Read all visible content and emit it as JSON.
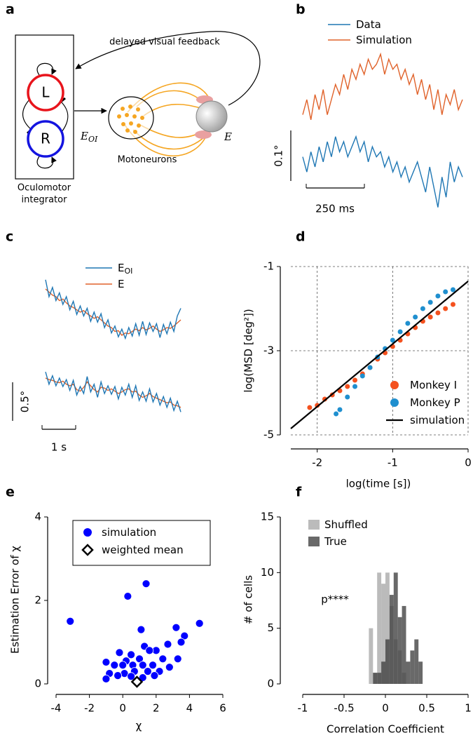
{
  "diagram": {
    "panel_label": "a",
    "feedback_label": "delayed visual feedback",
    "nodes": [
      {
        "label": "L"
      },
      {
        "label": "R"
      }
    ],
    "integrator_label": [
      "Oculomotor",
      "integrator"
    ],
    "signal_label": {
      "text": "E",
      "subscript": "OI"
    },
    "motoneuron_label": "Motoneurons",
    "eye_label": "E"
  },
  "chart_data": [
    {
      "type": "trace",
      "panel_label": "b",
      "series": [
        {
          "name": "Data",
          "color": "#1f77b4",
          "values": [
            0.02,
            -0.01,
            0.03,
            0.0,
            0.04,
            0.01,
            0.05,
            0.02,
            0.06,
            0.03,
            0.05,
            0.02,
            0.04,
            0.06,
            0.03,
            0.05,
            0.01,
            0.04,
            0.02,
            0.03,
            0.0,
            0.02,
            -0.01,
            0.01,
            -0.02,
            0.0,
            -0.03,
            -0.01,
            0.01,
            -0.02,
            -0.05,
            0.0,
            -0.04,
            -0.08,
            -0.02,
            -0.06,
            0.01,
            -0.03,
            0.0,
            -0.02
          ]
        },
        {
          "name": "Simulation",
          "color": "#e0622a",
          "values": [
            0.02,
            0.05,
            0.01,
            0.06,
            0.03,
            0.07,
            0.02,
            0.05,
            0.08,
            0.06,
            0.1,
            0.07,
            0.11,
            0.09,
            0.12,
            0.1,
            0.13,
            0.11,
            0.12,
            0.14,
            0.1,
            0.13,
            0.11,
            0.12,
            0.09,
            0.11,
            0.08,
            0.1,
            0.06,
            0.09,
            0.05,
            0.08,
            0.03,
            0.07,
            0.02,
            0.06,
            0.04,
            0.07,
            0.03,
            0.05
          ]
        }
      ],
      "scale_bars": [
        {
          "value": 0.1,
          "label": "0.1°"
        },
        {
          "value": 250,
          "label": "250 ms"
        }
      ]
    },
    {
      "type": "trace",
      "panel_label": "c",
      "series": [
        {
          "name": "E",
          "subscript": "OI",
          "color": "#1f77b4",
          "values": [
            [
              0.72,
              0.5,
              0.62,
              0.45,
              0.55,
              0.4,
              0.5,
              0.33,
              0.44,
              0.27,
              0.38,
              0.25,
              0.35,
              0.18,
              0.3,
              0.17,
              0.28,
              0.1,
              0.2,
              0.03,
              0.12,
              -0.02,
              0.08,
              -0.04,
              0.1,
              -0.01,
              0.15,
              0.0,
              0.18,
              0.01,
              0.16,
              0.05,
              0.15,
              -0.03,
              0.14,
              0.02,
              0.17,
              0.05,
              0.25,
              0.35
            ],
            [
              0.38,
              0.22,
              0.33,
              0.2,
              0.3,
              0.19,
              0.28,
              0.14,
              0.27,
              0.08,
              0.19,
              0.1,
              0.32,
              0.12,
              0.22,
              0.05,
              0.25,
              0.1,
              0.2,
              0.09,
              0.19,
              0.03,
              0.18,
              0.08,
              0.22,
              0.05,
              0.2,
              0.01,
              0.12,
              0.0,
              0.16,
              -0.01,
              0.1,
              -0.05,
              0.06,
              -0.08,
              0.04,
              -0.12,
              0.0,
              -0.14
            ]
          ]
        },
        {
          "name": "E",
          "color": "#e0622a",
          "values": [
            [
              0.6,
              0.56,
              0.52,
              0.5,
              0.45,
              0.47,
              0.42,
              0.38,
              0.36,
              0.33,
              0.3,
              0.32,
              0.28,
              0.25,
              0.22,
              0.24,
              0.2,
              0.16,
              0.12,
              0.1,
              0.05,
              0.06,
              0.0,
              0.03,
              0.02,
              0.05,
              0.08,
              0.06,
              0.1,
              0.07,
              0.09,
              0.12,
              0.08,
              0.05,
              0.07,
              0.1,
              0.09,
              0.12,
              0.16,
              0.2
            ],
            [
              0.3,
              0.28,
              0.27,
              0.25,
              0.24,
              0.26,
              0.22,
              0.2,
              0.22,
              0.15,
              0.13,
              0.18,
              0.25,
              0.2,
              0.15,
              0.12,
              0.18,
              0.17,
              0.14,
              0.16,
              0.13,
              0.1,
              0.12,
              0.15,
              0.16,
              0.12,
              0.13,
              0.08,
              0.05,
              0.07,
              0.1,
              0.06,
              0.04,
              0.02,
              0.0,
              -0.02,
              -0.01,
              -0.05,
              -0.06,
              -0.08
            ]
          ]
        }
      ],
      "scale_bars": [
        {
          "value": 0.5,
          "label": "0.5°"
        },
        {
          "value": 1,
          "label": "1 s"
        }
      ]
    },
    {
      "type": "scatter",
      "panel_label": "d",
      "xlabel": "log(time [s])",
      "ylabel": "log(MSD [deg²])",
      "xlim": [
        -2.35,
        0
      ],
      "ylim": [
        -5,
        -1
      ],
      "xticks": [
        -2,
        -1,
        0
      ],
      "yticks": [
        -1,
        -3,
        -5
      ],
      "grid": true,
      "legend": "lower right",
      "series": [
        {
          "name": "Monkey I",
          "color": "#f4511e",
          "x": [
            -2.1,
            -2.0,
            -1.9,
            -1.8,
            -1.7,
            -1.6,
            -1.5,
            -1.4,
            -1.3,
            -1.2,
            -1.1,
            -1.0,
            -0.9,
            -0.8,
            -0.7,
            -0.6,
            -0.5,
            -0.4,
            -0.3,
            -0.2
          ],
          "y": [
            -4.35,
            -4.3,
            -4.15,
            -4.05,
            -3.95,
            -3.85,
            -3.7,
            -3.55,
            -3.4,
            -3.2,
            -3.05,
            -2.9,
            -2.75,
            -2.6,
            -2.45,
            -2.3,
            -2.2,
            -2.1,
            -2.0,
            -1.9
          ]
        },
        {
          "name": "Monkey P",
          "color": "#1f8fcf",
          "x": [
            -1.75,
            -1.7,
            -1.6,
            -1.5,
            -1.4,
            -1.3,
            -1.2,
            -1.1,
            -1.0,
            -0.9,
            -0.8,
            -0.7,
            -0.6,
            -0.5,
            -0.4,
            -0.3,
            -0.2
          ],
          "y": [
            -4.5,
            -4.4,
            -4.1,
            -3.85,
            -3.6,
            -3.4,
            -3.15,
            -2.95,
            -2.75,
            -2.55,
            -2.35,
            -2.2,
            -2.0,
            -1.85,
            -1.7,
            -1.6,
            -1.55
          ]
        },
        {
          "name": "simulation",
          "type": "line",
          "color": "#000000",
          "x": [
            -2.35,
            0
          ],
          "y": [
            -4.85,
            -1.35
          ]
        }
      ]
    },
    {
      "type": "scatter",
      "panel_label": "e",
      "xlabel": "χ",
      "ylabel": "Estimation Error of χ",
      "xlim": [
        -4,
        6
      ],
      "ylim": [
        0,
        4
      ],
      "xticks": [
        -4,
        -2,
        0,
        2,
        4,
        6
      ],
      "yticks": [
        0,
        2,
        4
      ],
      "grid": false,
      "legend": "upper right",
      "series": [
        {
          "name": "simulation",
          "color": "#0000ff",
          "x": [
            -3.15,
            0.3,
            1.4,
            4.6,
            1.1,
            3.2,
            3.7,
            3.5,
            2.7,
            1.3,
            -0.2,
            0.5,
            2.0,
            1.6,
            -1.0,
            0.2,
            1.0,
            2.4,
            3.3,
            -0.5,
            0.0,
            0.6,
            1.2,
            1.8,
            2.8,
            -0.8,
            0.1,
            0.7,
            1.5,
            2.2,
            -1.0,
            0.5,
            1.9,
            -0.3,
            1.2
          ],
          "y": [
            1.5,
            2.1,
            2.4,
            1.45,
            1.3,
            1.35,
            1.15,
            1.0,
            0.95,
            0.9,
            0.75,
            0.7,
            0.8,
            0.8,
            0.52,
            0.55,
            0.6,
            0.6,
            0.6,
            0.45,
            0.45,
            0.45,
            0.45,
            0.45,
            0.4,
            0.25,
            0.25,
            0.3,
            0.3,
            0.3,
            0.12,
            0.18,
            0.2,
            0.2,
            0.15
          ]
        },
        {
          "name": "weighted mean",
          "marker": "diamond",
          "color": "#000000",
          "x": [
            0.85
          ],
          "y": [
            0.05
          ]
        }
      ]
    },
    {
      "type": "histogram",
      "panel_label": "f",
      "xlabel": "Correlation Coefficient",
      "ylabel": "# of cells",
      "annotation": "p****",
      "xlim": [
        -1,
        1
      ],
      "ylim": [
        0,
        15
      ],
      "xticks": [
        -1,
        -0.5,
        0,
        0.5,
        1
      ],
      "yticks": [
        0,
        5,
        10,
        15
      ],
      "legend": "upper left",
      "bins": [
        -0.2,
        -0.15,
        -0.1,
        -0.05,
        0,
        0.05,
        0.1,
        0.15,
        0.2,
        0.25,
        0.3,
        0.35,
        0.4,
        0.45
      ],
      "series": [
        {
          "name": "Shuffled",
          "color": "#aaaaaa",
          "values": [
            5,
            1,
            10,
            9,
            10,
            7,
            4,
            3,
            1,
            0,
            0,
            0,
            0
          ]
        },
        {
          "name": "True",
          "color": "#444444",
          "values": [
            0,
            1,
            1,
            2,
            4,
            8,
            10,
            6,
            7,
            2,
            3,
            4,
            2
          ]
        }
      ]
    }
  ]
}
